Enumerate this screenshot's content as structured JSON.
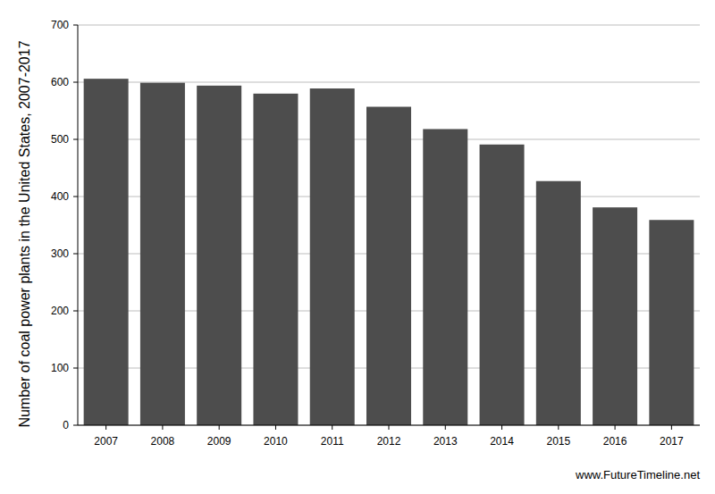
{
  "chart_data": {
    "type": "bar",
    "ylabel": "Number of coal power plants in the United States, 2007-2017",
    "categories": [
      "2007",
      "2008",
      "2009",
      "2010",
      "2011",
      "2012",
      "2013",
      "2014",
      "2015",
      "2016",
      "2017"
    ],
    "values": [
      606,
      599,
      594,
      580,
      589,
      557,
      518,
      491,
      427,
      381,
      359
    ],
    "color": "#4d4d4d",
    "ylim": [
      0,
      700
    ],
    "yticks": [
      0,
      100,
      200,
      300,
      400,
      500,
      600,
      700
    ],
    "grid": true,
    "annotations": [
      "www.FutureTimeline.net"
    ]
  }
}
